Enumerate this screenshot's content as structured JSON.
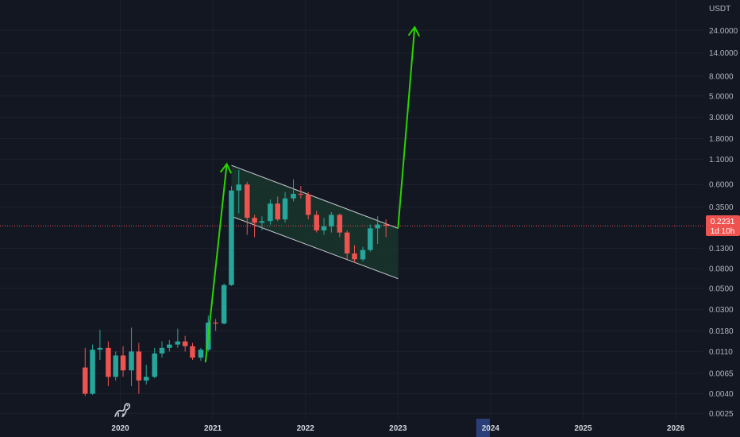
{
  "chart_data": {
    "type": "candlestick",
    "quote_currency": "USDT",
    "y_scale": "log",
    "ylim": [
      0.0022,
      36
    ],
    "y_ticks": [
      {
        "value": 24,
        "label": "24.0000"
      },
      {
        "value": 14,
        "label": "14.0000"
      },
      {
        "value": 8,
        "label": "8.0000"
      },
      {
        "value": 5,
        "label": "5.0000"
      },
      {
        "value": 3,
        "label": "3.0000"
      },
      {
        "value": 1.8,
        "label": "1.8000"
      },
      {
        "value": 1.1,
        "label": "1.1000"
      },
      {
        "value": 0.6,
        "label": "0.6000"
      },
      {
        "value": 0.35,
        "label": "0.3500"
      },
      {
        "value": 0.13,
        "label": "0.1300"
      },
      {
        "value": 0.08,
        "label": "0.0800"
      },
      {
        "value": 0.05,
        "label": "0.0500"
      },
      {
        "value": 0.03,
        "label": "0.0300"
      },
      {
        "value": 0.018,
        "label": "0.0180"
      },
      {
        "value": 0.011,
        "label": "0.0110"
      },
      {
        "value": 0.0065,
        "label": "0.0065"
      },
      {
        "value": 0.004,
        "label": "0.0040"
      },
      {
        "value": 0.0025,
        "label": "0.0025"
      }
    ],
    "x_ticks": [
      {
        "year": 2020,
        "label": "2020"
      },
      {
        "year": 2021,
        "label": "2021"
      },
      {
        "year": 2022,
        "label": "2022"
      },
      {
        "year": 2023,
        "label": "2023"
      },
      {
        "year": 2024,
        "label": "2024"
      },
      {
        "year": 2025,
        "label": "2025"
      },
      {
        "year": 2026,
        "label": "2026"
      }
    ],
    "x_range": [
      2018.7,
      2026.3
    ],
    "highlighted_year": 2024,
    "last_price": {
      "value": 0.2231,
      "label": "0.2231",
      "countdown": "1d 10h"
    },
    "candles": [
      {
        "t": 2019.62,
        "o": 0.0075,
        "h": 0.012,
        "l": 0.0038,
        "c": 0.004
      },
      {
        "t": 2019.7,
        "o": 0.004,
        "h": 0.013,
        "l": 0.0039,
        "c": 0.0115
      },
      {
        "t": 2019.78,
        "o": 0.0115,
        "h": 0.0185,
        "l": 0.009,
        "c": 0.012
      },
      {
        "t": 2019.87,
        "o": 0.012,
        "h": 0.014,
        "l": 0.0048,
        "c": 0.006
      },
      {
        "t": 2019.95,
        "o": 0.006,
        "h": 0.011,
        "l": 0.0055,
        "c": 0.01
      },
      {
        "t": 2020.03,
        "o": 0.01,
        "h": 0.0125,
        "l": 0.006,
        "c": 0.007
      },
      {
        "t": 2020.12,
        "o": 0.007,
        "h": 0.0195,
        "l": 0.0048,
        "c": 0.011
      },
      {
        "t": 2020.2,
        "o": 0.011,
        "h": 0.0135,
        "l": 0.004,
        "c": 0.0055
      },
      {
        "t": 2020.28,
        "o": 0.0055,
        "h": 0.008,
        "l": 0.005,
        "c": 0.006
      },
      {
        "t": 2020.37,
        "o": 0.006,
        "h": 0.012,
        "l": 0.0058,
        "c": 0.0105
      },
      {
        "t": 2020.45,
        "o": 0.0105,
        "h": 0.014,
        "l": 0.0095,
        "c": 0.012
      },
      {
        "t": 2020.53,
        "o": 0.012,
        "h": 0.0145,
        "l": 0.011,
        "c": 0.013
      },
      {
        "t": 2020.62,
        "o": 0.013,
        "h": 0.019,
        "l": 0.012,
        "c": 0.014
      },
      {
        "t": 2020.7,
        "o": 0.014,
        "h": 0.016,
        "l": 0.011,
        "c": 0.0125
      },
      {
        "t": 2020.78,
        "o": 0.0125,
        "h": 0.0135,
        "l": 0.009,
        "c": 0.0095
      },
      {
        "t": 2020.87,
        "o": 0.0095,
        "h": 0.012,
        "l": 0.0088,
        "c": 0.0115
      },
      {
        "t": 2020.95,
        "o": 0.0115,
        "h": 0.026,
        "l": 0.011,
        "c": 0.022
      },
      {
        "t": 2021.03,
        "o": 0.022,
        "h": 0.024,
        "l": 0.018,
        "c": 0.0215
      },
      {
        "t": 2021.12,
        "o": 0.0215,
        "h": 0.056,
        "l": 0.021,
        "c": 0.054
      },
      {
        "t": 2021.2,
        "o": 0.054,
        "h": 0.58,
        "l": 0.053,
        "c": 0.52
      },
      {
        "t": 2021.28,
        "o": 0.52,
        "h": 0.85,
        "l": 0.3,
        "c": 0.6
      },
      {
        "t": 2021.37,
        "o": 0.6,
        "h": 0.64,
        "l": 0.18,
        "c": 0.27
      },
      {
        "t": 2021.45,
        "o": 0.27,
        "h": 0.29,
        "l": 0.17,
        "c": 0.24
      },
      {
        "t": 2021.53,
        "o": 0.24,
        "h": 0.28,
        "l": 0.2,
        "c": 0.25
      },
      {
        "t": 2021.62,
        "o": 0.25,
        "h": 0.42,
        "l": 0.23,
        "c": 0.38
      },
      {
        "t": 2021.7,
        "o": 0.38,
        "h": 0.45,
        "l": 0.25,
        "c": 0.26
      },
      {
        "t": 2021.78,
        "o": 0.26,
        "h": 0.5,
        "l": 0.24,
        "c": 0.43
      },
      {
        "t": 2021.87,
        "o": 0.43,
        "h": 0.68,
        "l": 0.4,
        "c": 0.48
      },
      {
        "t": 2021.95,
        "o": 0.48,
        "h": 0.58,
        "l": 0.43,
        "c": 0.47
      },
      {
        "t": 2022.03,
        "o": 0.47,
        "h": 0.5,
        "l": 0.26,
        "c": 0.29
      },
      {
        "t": 2022.12,
        "o": 0.29,
        "h": 0.32,
        "l": 0.19,
        "c": 0.2
      },
      {
        "t": 2022.2,
        "o": 0.2,
        "h": 0.27,
        "l": 0.18,
        "c": 0.22
      },
      {
        "t": 2022.28,
        "o": 0.22,
        "h": 0.31,
        "l": 0.19,
        "c": 0.29
      },
      {
        "t": 2022.37,
        "o": 0.29,
        "h": 0.3,
        "l": 0.17,
        "c": 0.19
      },
      {
        "t": 2022.45,
        "o": 0.19,
        "h": 0.2,
        "l": 0.1,
        "c": 0.115
      },
      {
        "t": 2022.53,
        "o": 0.115,
        "h": 0.14,
        "l": 0.092,
        "c": 0.1
      },
      {
        "t": 2022.62,
        "o": 0.1,
        "h": 0.135,
        "l": 0.095,
        "c": 0.125
      },
      {
        "t": 2022.7,
        "o": 0.125,
        "h": 0.23,
        "l": 0.12,
        "c": 0.21
      },
      {
        "t": 2022.78,
        "o": 0.21,
        "h": 0.28,
        "l": 0.145,
        "c": 0.23
      },
      {
        "t": 2022.87,
        "o": 0.23,
        "h": 0.26,
        "l": 0.17,
        "c": 0.2231
      }
    ],
    "annotations": {
      "channel": {
        "upper": {
          "t1": 2021.2,
          "v1": 0.95,
          "t2": 2023.0,
          "v2": 0.21
        },
        "lower": {
          "t1": 2021.2,
          "v1": 0.28,
          "t2": 2023.0,
          "v2": 0.063
        }
      },
      "arrows": [
        {
          "t1": 2020.92,
          "v1": 0.0085,
          "t2": 2021.15,
          "v2": 0.98
        },
        {
          "t1": 2023.0,
          "v1": 0.21,
          "t2": 2023.18,
          "v2": 26
        }
      ]
    },
    "colors": {
      "background": "#131722",
      "up": "#26a69a",
      "down": "#ef5350",
      "grid": "#1e222d",
      "arrow": "#2bd400",
      "channel_fill": "#1b3a2e",
      "channel_line": "#c9ced6",
      "price_line": "#ef5350",
      "highlight_bar": "#2a3f7a"
    }
  }
}
